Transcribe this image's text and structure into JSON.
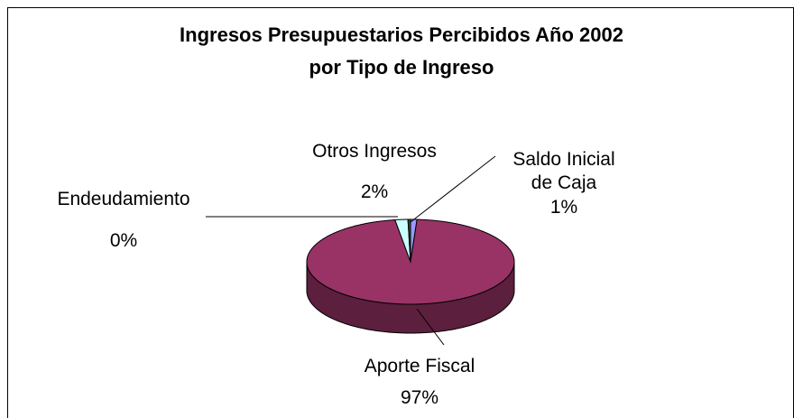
{
  "chart_data": {
    "type": "pie3d",
    "title": "Ingresos Presupuestarios Percibidos Año 2002",
    "subtitle": "por Tipo de Ingreso",
    "categories": [
      "Saldo Inicial de Caja",
      "Aporte Fiscal",
      "Otros Ingresos",
      "Endeudamiento"
    ],
    "values": [
      1,
      97,
      2,
      0.4
    ],
    "value_labels": [
      "1%",
      "97%",
      "2%",
      "0%"
    ],
    "colors": [
      "#9999ff",
      "#993366",
      "#ccffff",
      "#2f4f3a"
    ]
  }
}
